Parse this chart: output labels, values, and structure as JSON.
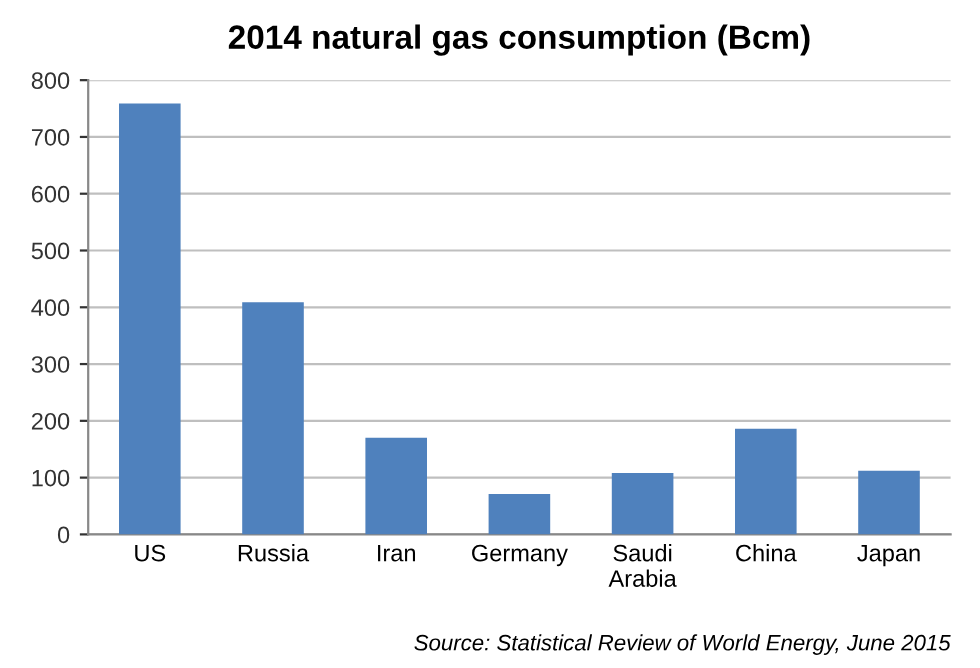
{
  "chart_data": {
    "type": "bar",
    "title": "2014 natural gas consumption (Bcm)",
    "categories": [
      "US",
      "Russia",
      "Iran",
      "Germany",
      "Saudi\nArabia",
      "China",
      "Japan"
    ],
    "values": [
      759,
      409,
      170,
      71,
      108,
      186,
      112
    ],
    "color": "#4f81bd",
    "ylim": [
      0,
      800
    ],
    "yticks": [
      0,
      100,
      200,
      300,
      400,
      500,
      600,
      700,
      800
    ],
    "grid": "y",
    "annotations": [
      "Source: Statistical Review of World Energy, June 2015"
    ]
  }
}
